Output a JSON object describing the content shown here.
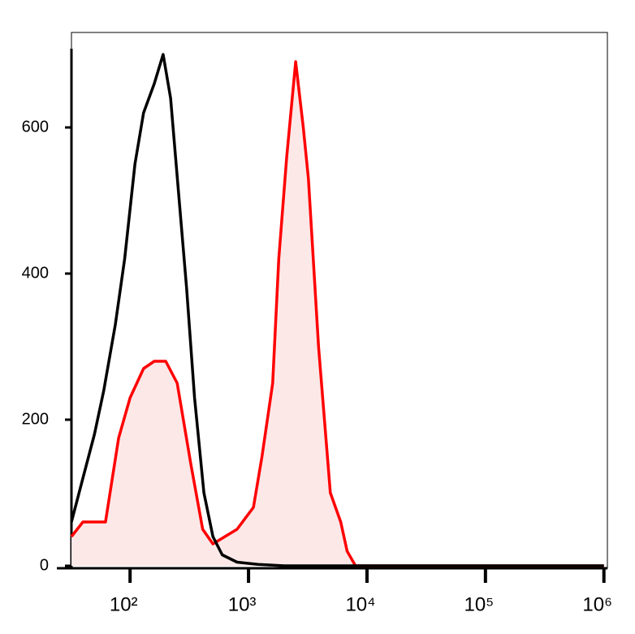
{
  "chart_data": {
    "type": "histogram-line",
    "xscale": "log",
    "xlim": [
      32,
      1070000
    ],
    "ylim": [
      0,
      730
    ],
    "xticks": [
      {
        "value": 100,
        "label": "10²"
      },
      {
        "value": 1000,
        "label": "10³"
      },
      {
        "value": 10000,
        "label": "10⁴"
      },
      {
        "value": 100000,
        "label": "10⁵"
      },
      {
        "value": 1000000,
        "label": "10⁶"
      }
    ],
    "yticks": [
      0,
      200,
      400,
      600
    ],
    "series": [
      {
        "color": "#000000",
        "fill": null,
        "x": [
          32,
          40,
          50,
          60,
          75,
          90,
          110,
          130,
          160,
          190,
          220,
          260,
          300,
          350,
          420,
          500,
          600,
          800,
          1200,
          2000,
          1000000
        ],
        "values": [
          60,
          120,
          180,
          240,
          330,
          420,
          550,
          620,
          660,
          700,
          640,
          500,
          380,
          230,
          100,
          40,
          15,
          5,
          2,
          0,
          0
        ]
      },
      {
        "color": "#ff0000",
        "fill": "#fde8e8",
        "x": [
          32,
          40,
          50,
          62,
          80,
          100,
          130,
          160,
          200,
          250,
          325,
          410,
          500,
          800,
          1100,
          1300,
          1600,
          1800,
          2100,
          2500,
          2900,
          3200,
          3900,
          4900,
          6000,
          6800,
          8000,
          1000000
        ],
        "values": [
          40,
          60,
          60,
          60,
          175,
          230,
          270,
          280,
          280,
          250,
          140,
          50,
          30,
          50,
          80,
          150,
          250,
          420,
          560,
          690,
          600,
          530,
          300,
          100,
          60,
          20,
          0,
          0
        ]
      }
    ]
  }
}
